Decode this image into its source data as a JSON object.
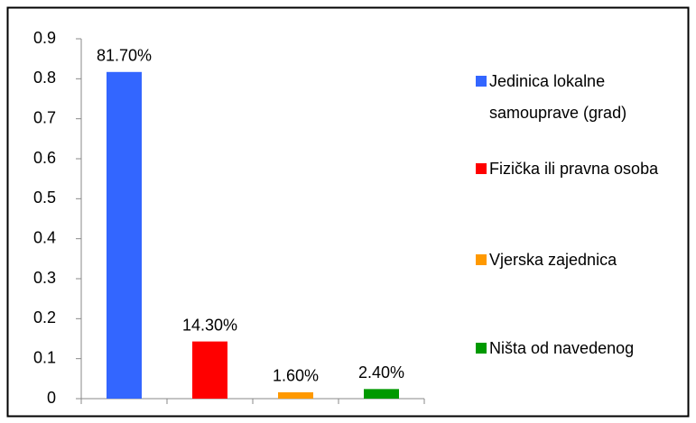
{
  "chart_data": {
    "type": "bar",
    "categories": [
      null,
      null,
      null,
      null
    ],
    "values": [
      0.817,
      0.143,
      0.016,
      0.024
    ],
    "value_labels": [
      "81.70%",
      "14.30%",
      "1.60%",
      "2.40%"
    ],
    "colors": [
      "#3366ff",
      "#ff0000",
      "#ff9900",
      "#009900"
    ],
    "legend": [
      "Jedinica lokalne samouprave (grad)",
      "Fizička ili pravna osoba",
      "Vjerska zajednica",
      "Ništa od navedenog"
    ],
    "legend_position": "right",
    "ylim": [
      0,
      0.9
    ],
    "yticks": [
      0,
      0.1,
      0.2,
      0.3,
      0.4,
      0.5,
      0.6,
      0.7,
      0.8,
      0.9
    ],
    "grid": false
  }
}
